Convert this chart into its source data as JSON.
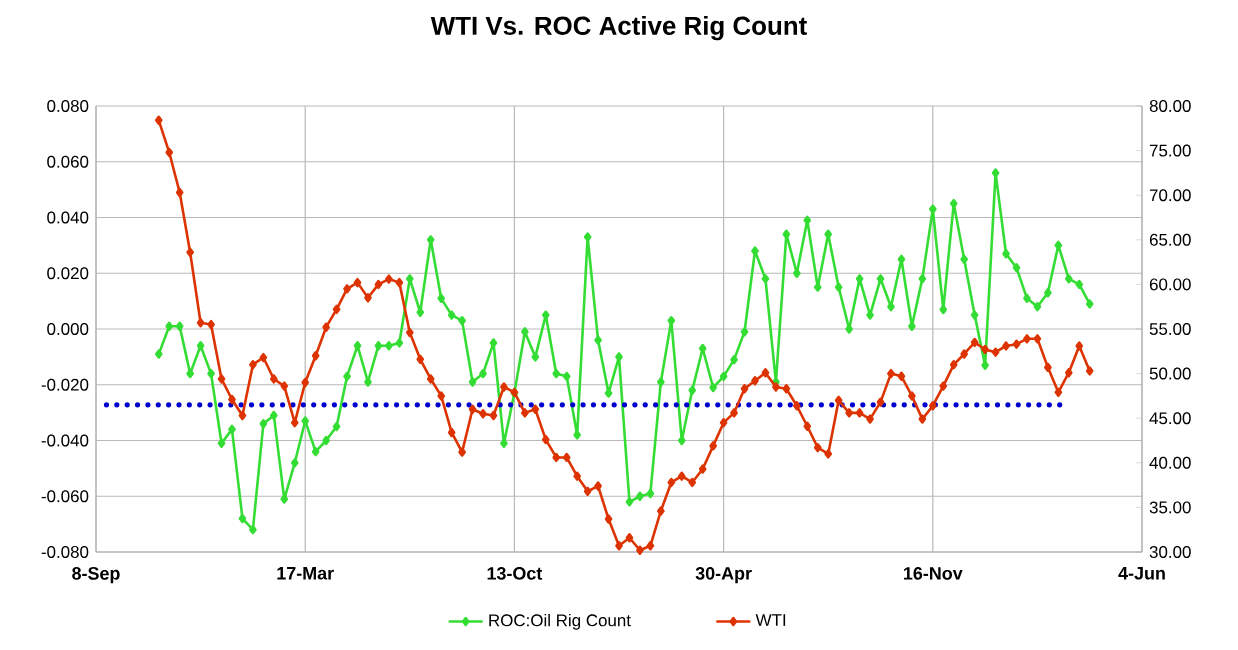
{
  "chart_data": {
    "type": "line",
    "title": "WTI Vs. ROC Active Rig Count",
    "categories": [
      "8-Sep",
      null,
      null,
      null,
      null,
      null,
      null,
      null,
      null,
      null,
      null,
      null,
      null,
      null,
      null,
      null,
      null,
      null,
      null,
      null,
      "17-Mar",
      null,
      null,
      null,
      null,
      null,
      null,
      null,
      null,
      null,
      null,
      null,
      null,
      null,
      null,
      null,
      null,
      null,
      null,
      null,
      "13-Oct",
      null,
      null,
      null,
      null,
      null,
      null,
      null,
      null,
      null,
      null,
      null,
      null,
      null,
      null,
      null,
      null,
      null,
      null,
      null,
      "30-Apr",
      null,
      null,
      null,
      null,
      null,
      null,
      null,
      null,
      null,
      null,
      null,
      null,
      null,
      null,
      null,
      null,
      null,
      null,
      null,
      "16-Nov",
      null,
      null,
      null,
      null,
      null,
      null,
      null,
      null,
      null,
      null,
      null,
      null,
      null,
      null,
      null,
      null,
      null,
      null,
      null,
      "4-Jun"
    ],
    "series": [
      {
        "name": "ROC:Oil Rig Count",
        "color": "#33dd33",
        "values": [
          null,
          null,
          null,
          null,
          null,
          null,
          -0.009,
          0.001,
          0.001,
          -0.016,
          -0.006,
          -0.016,
          -0.041,
          -0.036,
          -0.068,
          -0.072,
          -0.034,
          -0.031,
          -0.061,
          -0.048,
          -0.033,
          -0.044,
          -0.04,
          -0.035,
          -0.017,
          -0.006,
          -0.019,
          -0.006,
          -0.006,
          -0.005,
          0.018,
          0.006,
          0.032,
          0.011,
          0.005,
          0.003,
          -0.019,
          -0.016,
          -0.005,
          -0.041,
          -0.023,
          -0.001,
          -0.01,
          0.005,
          -0.016,
          -0.017,
          -0.038,
          0.033,
          -0.004,
          -0.023,
          -0.01,
          -0.062,
          -0.06,
          -0.059,
          -0.019,
          0.003,
          -0.04,
          -0.022,
          -0.007,
          -0.021,
          -0.017,
          -0.011,
          -0.001,
          0.028,
          0.018,
          -0.019,
          0.034,
          0.02,
          0.039,
          0.015,
          0.034,
          0.015,
          0.0,
          0.018,
          0.005,
          0.018,
          0.008,
          0.025,
          0.001,
          0.018,
          0.043,
          0.007,
          0.045,
          0.025,
          0.005,
          -0.013,
          0.056,
          0.027,
          0.022,
          0.011,
          0.008,
          0.013,
          0.03,
          0.018,
          0.016,
          0.009,
          null,
          null,
          null,
          null,
          null
        ]
      },
      {
        "type": "line",
        "axis": "y2",
        "line_style": "dotted",
        "marker": "none",
        "color": "#0000cc",
        "values": [
          null,
          46.5,
          46.5,
          46.5,
          46.5,
          46.5,
          46.5,
          46.5,
          46.5,
          46.5,
          46.5,
          46.5,
          46.5,
          46.5,
          46.5,
          46.5,
          46.5,
          46.5,
          46.5,
          46.5,
          46.5,
          46.5,
          46.5,
          46.5,
          46.5,
          46.5,
          46.5,
          46.5,
          46.5,
          46.5,
          46.5,
          46.5,
          46.5,
          46.5,
          46.5,
          46.5,
          46.5,
          46.5,
          46.5,
          46.5,
          46.5,
          46.5,
          46.5,
          46.5,
          46.5,
          46.5,
          46.5,
          46.5,
          46.5,
          46.5,
          46.5,
          46.5,
          46.5,
          46.5,
          46.5,
          46.5,
          46.5,
          46.5,
          46.5,
          46.5,
          46.5,
          46.5,
          46.5,
          46.5,
          46.5,
          46.5,
          46.5,
          46.5,
          46.5,
          46.5,
          46.5,
          46.5,
          46.5,
          46.5,
          46.5,
          46.5,
          46.5,
          46.5,
          46.5,
          46.5,
          46.5,
          46.5,
          46.5,
          46.5,
          46.5,
          46.5,
          46.5,
          46.5,
          46.5,
          46.5,
          46.5,
          46.5,
          46.5,
          46.5,
          null,
          null,
          null,
          null,
          null,
          null,
          null
        ]
      },
      {
        "name": "WTI",
        "axis": "y2",
        "color": "#dd3300",
        "values": [
          null,
          null,
          null,
          null,
          null,
          null,
          78.4,
          74.8,
          70.3,
          63.6,
          55.7,
          55.5,
          49.4,
          47.1,
          45.3,
          51.0,
          51.8,
          49.4,
          48.6,
          44.5,
          49.0,
          52.0,
          55.2,
          57.2,
          59.5,
          60.2,
          58.5,
          60.0,
          60.6,
          60.2,
          54.6,
          51.6,
          49.4,
          47.5,
          43.4,
          41.2,
          46.0,
          45.5,
          45.3,
          48.5,
          47.9,
          45.6,
          46.0,
          42.6,
          40.6,
          40.6,
          38.5,
          36.8,
          37.4,
          33.7,
          30.7,
          31.6,
          30.2,
          30.7,
          34.6,
          37.8,
          38.5,
          37.8,
          39.3,
          41.9,
          44.5,
          45.6,
          48.3,
          49.2,
          50.1,
          48.5,
          48.3,
          46.4,
          44.1,
          41.7,
          41.0,
          47.0,
          45.6,
          45.6,
          44.9,
          46.8,
          50.0,
          49.7,
          47.5,
          44.9,
          46.4,
          48.6,
          51.0,
          52.2,
          53.5,
          52.7,
          52.4,
          53.1,
          53.3,
          53.9,
          53.9,
          50.7,
          47.9,
          50.1,
          53.1,
          50.3,
          null,
          null,
          null,
          null,
          null
        ]
      }
    ],
    "ylim": [
      -0.08,
      0.08
    ],
    "yticks": [
      {
        "value": -0.08,
        "label": "-0.080"
      },
      {
        "value": -0.06,
        "label": "-0.060"
      },
      {
        "value": -0.04,
        "label": "-0.040"
      },
      {
        "value": -0.02,
        "label": "-0.020"
      },
      {
        "value": 0,
        "label": "0.000"
      },
      {
        "value": 0.02,
        "label": "0.020"
      },
      {
        "value": 0.04,
        "label": "0.040"
      },
      {
        "value": 0.06,
        "label": "0.060"
      },
      {
        "value": 0.08,
        "label": "0.080"
      }
    ],
    "y2lim": [
      30,
      80
    ],
    "y2ticks": [
      {
        "value": 30,
        "label": "30.00"
      },
      {
        "value": 35,
        "label": "35.00"
      },
      {
        "value": 40,
        "label": "40.00"
      },
      {
        "value": 45,
        "label": "45.00"
      },
      {
        "value": 50,
        "label": "50.00"
      },
      {
        "value": 55,
        "label": "55.00"
      },
      {
        "value": 60,
        "label": "60.00"
      },
      {
        "value": 65,
        "label": "65.00"
      },
      {
        "value": 70,
        "label": "70.00"
      },
      {
        "value": 75,
        "label": "75.00"
      },
      {
        "value": 80,
        "label": "80.00"
      }
    ],
    "grid": true,
    "legend": "bottom",
    "marker": "diamond",
    "line_style": "solid"
  }
}
